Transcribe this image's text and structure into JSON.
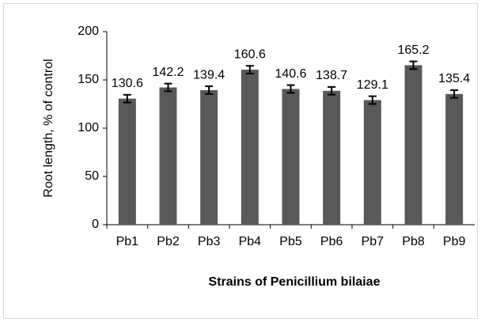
{
  "chart_data": {
    "type": "bar",
    "ylabel": "Root length, % of control",
    "xlabel": "Strains of Penicillium bilaiae",
    "categories": [
      "Pb1",
      "Pb2",
      "Pb3",
      "Pb4",
      "Pb5",
      "Pb6",
      "Pb7",
      "Pb8",
      "Pb9"
    ],
    "values": [
      130.6,
      142.2,
      139.4,
      160.6,
      140.6,
      138.7,
      129.1,
      165.2,
      135.4
    ],
    "errors": [
      4,
      4,
      4,
      4,
      4,
      4,
      4,
      4,
      4
    ],
    "color": "#595959",
    "ylim": [
      0,
      200
    ],
    "yticks": [
      0,
      50,
      100,
      150,
      200
    ],
    "grid": false
  }
}
